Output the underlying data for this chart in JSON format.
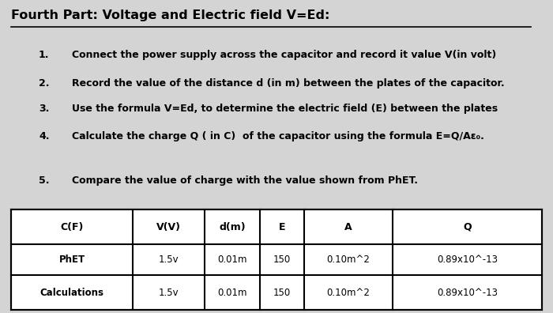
{
  "title": "Fourth Part: Voltage and Electric field V=Ed:",
  "instructions": [
    "Connect the power supply across the capacitor and record it value V(in volt)",
    "Record the value of the distance d (in m) between the plates of the capacitor.",
    "Use the formula V=Ed, to determine the electric field (E) between the plates",
    "Calculate the charge Q ( in C)  of the capacitor using the formula E=Q/Aε₀."
  ],
  "step5": "Compare the value of charge with the value shown from PhET.",
  "table_headers": [
    "C(F)",
    "V(V)",
    "d(m)",
    "E",
    "A",
    "Q"
  ],
  "table_rows": [
    [
      "PhET",
      "1.5v",
      "0.01m",
      "150",
      "0.10m^2",
      "0.89x10^-13"
    ],
    [
      "Calculations",
      "1.5v",
      "0.01m",
      "150",
      "0.10m^2",
      "0.89x10^-13"
    ]
  ],
  "bg_color": "#d4d4d4",
  "text_color": "#000000",
  "table_bg": "#ffffff"
}
